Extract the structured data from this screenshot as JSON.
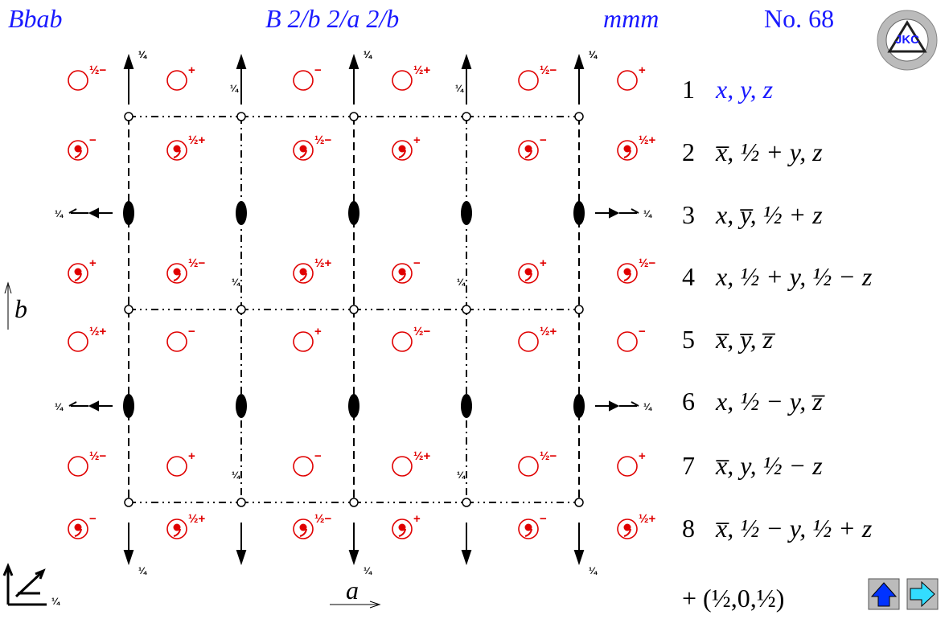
{
  "header": {
    "symbol": "Bbab",
    "full_symbol": "B 2/b 2/a 2/b",
    "point_group": "mmm",
    "number": "No. 68"
  },
  "logo": "JKC",
  "quarter": "¼",
  "axes": {
    "a": "a",
    "b": "b"
  },
  "site_rows": [
    {
      "comma": false,
      "labels": [
        "½−",
        "+",
        "−",
        "½+",
        "½−",
        "+"
      ]
    },
    {
      "comma": true,
      "labels": [
        "−",
        "½+",
        "½−",
        "+",
        "−",
        "½+"
      ]
    },
    {
      "comma": true,
      "labels": [
        "+",
        "½−",
        "½+",
        "−",
        "+",
        "½−"
      ]
    },
    {
      "comma": false,
      "labels": [
        "½+",
        "−",
        "+",
        "½−",
        "½+",
        "−"
      ]
    },
    {
      "comma": false,
      "labels": [
        "½−",
        "+",
        "−",
        "½+",
        "½−",
        "+"
      ]
    },
    {
      "comma": true,
      "labels": [
        "−",
        "½+",
        "½−",
        "+",
        "−",
        "½+"
      ]
    }
  ],
  "positions": [
    {
      "index": 1,
      "coords": "x, y, z"
    },
    {
      "index": 2,
      "coords": "x̅, ½ + y, z"
    },
    {
      "index": 3,
      "coords": "x, y̅, ½ + z"
    },
    {
      "index": 4,
      "coords": "x, ½ + y, ½ − z"
    },
    {
      "index": 5,
      "coords": "x̅, y̅, z̅"
    },
    {
      "index": 6,
      "coords": "x, ½ − y, z̅"
    },
    {
      "index": 7,
      "coords": "x̅, y, ½ − z"
    },
    {
      "index": 8,
      "coords": "x̅, ½ − y, ½ + z"
    }
  ],
  "centering": "+ (½,0,½)"
}
